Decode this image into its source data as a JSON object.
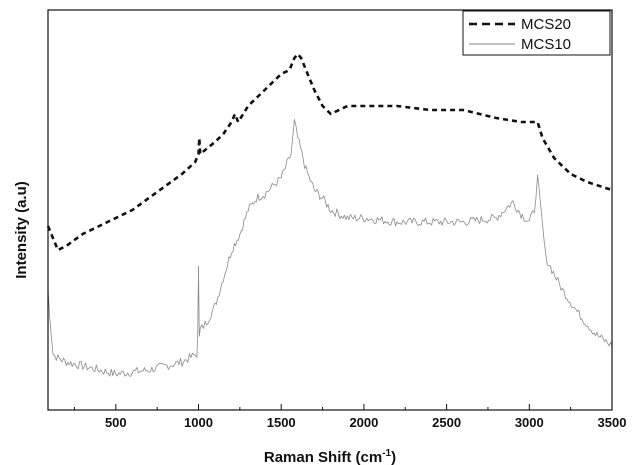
{
  "chart_data": {
    "type": "line",
    "xlabel": "Raman Shift (cm",
    "xlabel_sup": "-1",
    "xlabel_end": ")",
    "ylabel": "Intensity (a.u)",
    "xlim": [
      90,
      3500
    ],
    "ylim": [
      0,
      100
    ],
    "x_ticks": [
      500,
      1000,
      1500,
      2000,
      2500,
      3000,
      3500
    ],
    "y_ticks_visible": false,
    "grid": false,
    "legend_position": "top-right",
    "series": [
      {
        "name": "MCS20",
        "style": "dashed",
        "color": "#111111",
        "points": [
          [
            90,
            46
          ],
          [
            110,
            44
          ],
          [
            150,
            40
          ],
          [
            200,
            41
          ],
          [
            300,
            44
          ],
          [
            400,
            46
          ],
          [
            500,
            48
          ],
          [
            600,
            50
          ],
          [
            700,
            53
          ],
          [
            800,
            56
          ],
          [
            900,
            59
          ],
          [
            980,
            62
          ],
          [
            1000,
            64
          ],
          [
            1005,
            68
          ],
          [
            1010,
            64
          ],
          [
            1100,
            67
          ],
          [
            1150,
            69
          ],
          [
            1200,
            72
          ],
          [
            1220,
            74
          ],
          [
            1240,
            72
          ],
          [
            1300,
            76
          ],
          [
            1400,
            80
          ],
          [
            1500,
            84
          ],
          [
            1550,
            85
          ],
          [
            1580,
            88
          ],
          [
            1600,
            89
          ],
          [
            1620,
            88
          ],
          [
            1650,
            85
          ],
          [
            1700,
            80
          ],
          [
            1750,
            76
          ],
          [
            1800,
            74
          ],
          [
            1900,
            76
          ],
          [
            2000,
            76
          ],
          [
            2200,
            76
          ],
          [
            2400,
            75
          ],
          [
            2600,
            75
          ],
          [
            2800,
            73
          ],
          [
            2950,
            72
          ],
          [
            3050,
            72
          ],
          [
            3080,
            68
          ],
          [
            3150,
            63
          ],
          [
            3250,
            59
          ],
          [
            3350,
            57
          ],
          [
            3500,
            55
          ]
        ]
      },
      {
        "name": "MCS10",
        "style": "solid",
        "color": "#8a8a8a",
        "points": [
          [
            90,
            30
          ],
          [
            100,
            24
          ],
          [
            120,
            14
          ],
          [
            150,
            13
          ],
          [
            200,
            12
          ],
          [
            300,
            11
          ],
          [
            400,
            10
          ],
          [
            500,
            9
          ],
          [
            600,
            9.5
          ],
          [
            700,
            10
          ],
          [
            800,
            11
          ],
          [
            900,
            12
          ],
          [
            990,
            14
          ],
          [
            995,
            18
          ],
          [
            1000,
            37
          ],
          [
            1005,
            18
          ],
          [
            1010,
            20
          ],
          [
            1050,
            22
          ],
          [
            1100,
            26
          ],
          [
            1150,
            33
          ],
          [
            1200,
            40
          ],
          [
            1250,
            44
          ],
          [
            1300,
            50
          ],
          [
            1350,
            53
          ],
          [
            1400,
            54
          ],
          [
            1500,
            58
          ],
          [
            1560,
            64
          ],
          [
            1580,
            72
          ],
          [
            1600,
            68
          ],
          [
            1650,
            60
          ],
          [
            1700,
            55
          ],
          [
            1750,
            53
          ],
          [
            1800,
            50
          ],
          [
            1900,
            48
          ],
          [
            2000,
            48
          ],
          [
            2200,
            47
          ],
          [
            2400,
            47
          ],
          [
            2600,
            47
          ],
          [
            2800,
            48
          ],
          [
            2900,
            52
          ],
          [
            2950,
            49
          ],
          [
            3000,
            47
          ],
          [
            3030,
            50
          ],
          [
            3050,
            58
          ],
          [
            3070,
            50
          ],
          [
            3100,
            38
          ],
          [
            3200,
            30
          ],
          [
            3300,
            24
          ],
          [
            3400,
            19
          ],
          [
            3500,
            16
          ]
        ]
      }
    ]
  }
}
